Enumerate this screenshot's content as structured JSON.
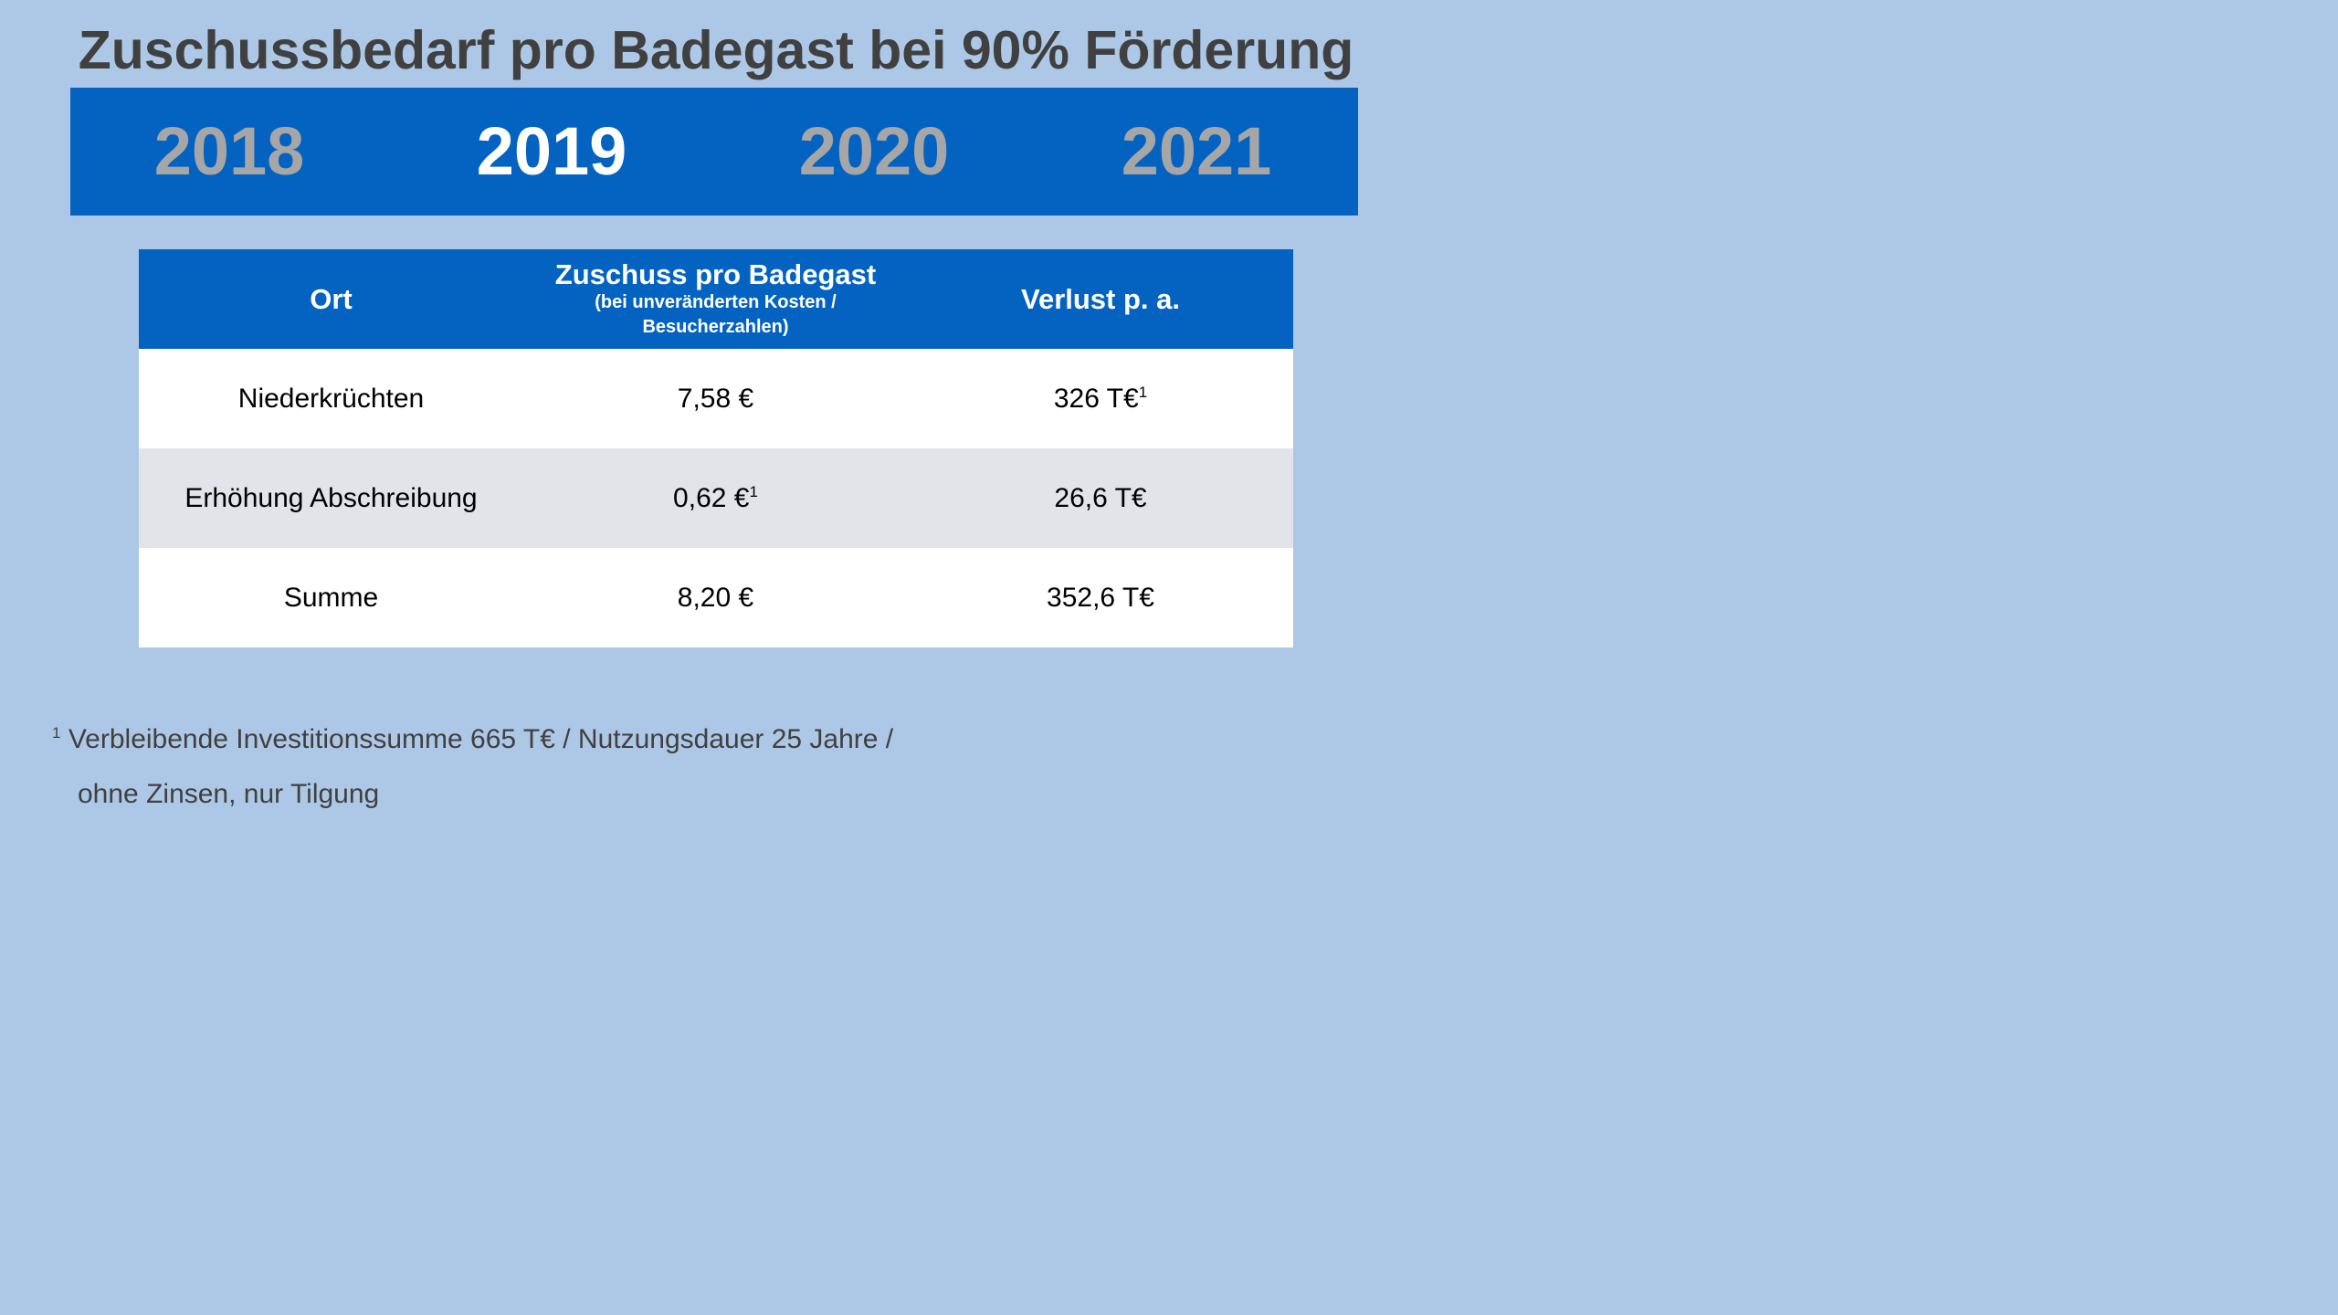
{
  "title": "Zuschussbedarf pro Badegast bei 90% Förderung",
  "years": {
    "items": [
      "2018",
      "2019",
      "2020",
      "2021"
    ],
    "active": "2019"
  },
  "table": {
    "headers": {
      "col1": "Ort",
      "col2_main": "Zuschuss pro Badegast",
      "col2_sub_line1": "(bei unveränderten Kosten /",
      "col2_sub_line2": "Besucherzahlen)",
      "col3": "Verlust p. a."
    },
    "rows": [
      {
        "ort": "Niederkrüchten",
        "zuschuss": "7,58 €",
        "zuschuss_sup": "",
        "verlust": "326 T€",
        "verlust_sup": "1"
      },
      {
        "ort": "Erhöhung Abschreibung",
        "zuschuss": "0,62 €",
        "zuschuss_sup": "1",
        "verlust": "26,6 T€",
        "verlust_sup": ""
      },
      {
        "ort": "Summe",
        "zuschuss": "8,20 €",
        "zuschuss_sup": "",
        "verlust": "352,6 T€",
        "verlust_sup": ""
      }
    ]
  },
  "footnote": {
    "mark": "1",
    "line1": "Verbleibende Investitionssumme 665 T€ / Nutzungsdauer 25 Jahre /",
    "line2": "ohne Zinsen, nur Tilgung"
  },
  "colors": {
    "background": "#adc8e6",
    "accent_blue": "#0463c1",
    "inactive_year": "#a6a6a6",
    "title_text": "#404040",
    "row_grey": "#e3e4ea"
  }
}
